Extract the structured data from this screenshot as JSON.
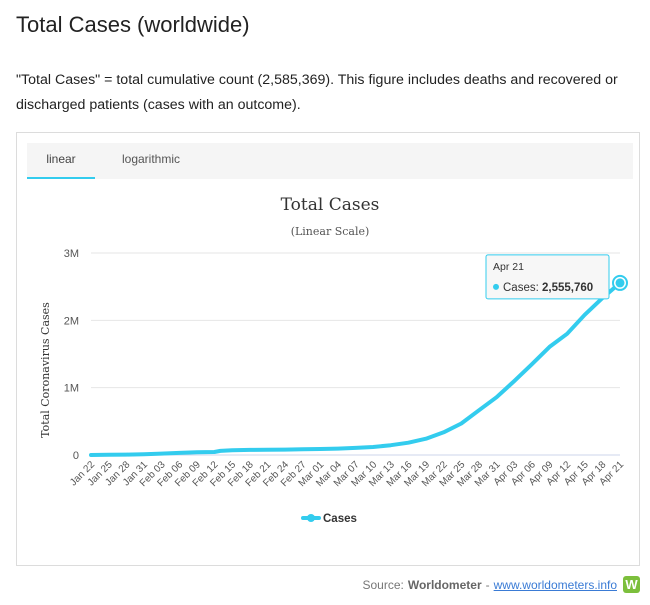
{
  "page": {
    "title": "Total Cases (worldwide)",
    "description": "\"Total Cases\" = total cumulative count (2,585,369). This figure includes deaths and recovered or discharged patients (cases with an outcome)."
  },
  "tabs": [
    {
      "label": "linear",
      "active": true
    },
    {
      "label": "logarithmic",
      "active": false
    }
  ],
  "source": {
    "prefix": "Source:",
    "name": "Worldometer",
    "separator": "-",
    "link": "www.worldometers.info",
    "logo_letter": "W"
  },
  "colors": {
    "series": "#33ccee",
    "accent": "#33ccee",
    "logo": "#7cbf3c"
  },
  "chart_data": {
    "type": "line",
    "title": "Total Cases",
    "subtitle": "(Linear Scale)",
    "ylabel": "Total Coronavirus Cases",
    "xlabel": "",
    "ylim": [
      0,
      3000000
    ],
    "yticks": [
      0,
      1000000,
      2000000,
      3000000
    ],
    "ytick_labels": [
      "0",
      "1M",
      "2M",
      "3M"
    ],
    "xtick_labels": [
      "Jan 22",
      "Jan 25",
      "Jan 28",
      "Jan 31",
      "Feb 03",
      "Feb 06",
      "Feb 09",
      "Feb 12",
      "Feb 15",
      "Feb 18",
      "Feb 21",
      "Feb 24",
      "Feb 27",
      "Mar 01",
      "Mar 04",
      "Mar 07",
      "Mar 10",
      "Mar 13",
      "Mar 16",
      "Mar 19",
      "Mar 22",
      "Mar 25",
      "Mar 28",
      "Mar 31",
      "Apr 03",
      "Apr 06",
      "Apr 09",
      "Apr 12",
      "Apr 15",
      "Apr 18",
      "Apr 21"
    ],
    "grid": true,
    "legend_position": "bottom-center",
    "series": [
      {
        "name": "Cases",
        "color": "#33ccee",
        "x": [
          "Jan 22",
          "Jan 25",
          "Jan 28",
          "Jan 31",
          "Feb 03",
          "Feb 06",
          "Feb 09",
          "Feb 12",
          "Feb 13",
          "Feb 15",
          "Feb 18",
          "Feb 21",
          "Feb 24",
          "Feb 27",
          "Mar 01",
          "Mar 04",
          "Mar 07",
          "Mar 10",
          "Mar 13",
          "Mar 16",
          "Mar 19",
          "Mar 22",
          "Mar 25",
          "Mar 28",
          "Mar 31",
          "Apr 03",
          "Apr 06",
          "Apr 09",
          "Apr 12",
          "Apr 15",
          "Apr 18",
          "Apr 21"
        ],
        "values": [
          580,
          2900,
          6100,
          11900,
          20600,
          31500,
          40600,
          45200,
          60400,
          69200,
          75200,
          77800,
          80100,
          85400,
          88400,
          95300,
          105900,
          119300,
          145300,
          183000,
          242700,
          337500,
          468500,
          663900,
          858600,
          1097900,
          1347000,
          1604900,
          1800000,
          2082600,
          2330000,
          2555760
        ]
      }
    ],
    "tooltip": {
      "date": "Apr 21",
      "series": "Cases",
      "value": "2,555,760"
    }
  }
}
